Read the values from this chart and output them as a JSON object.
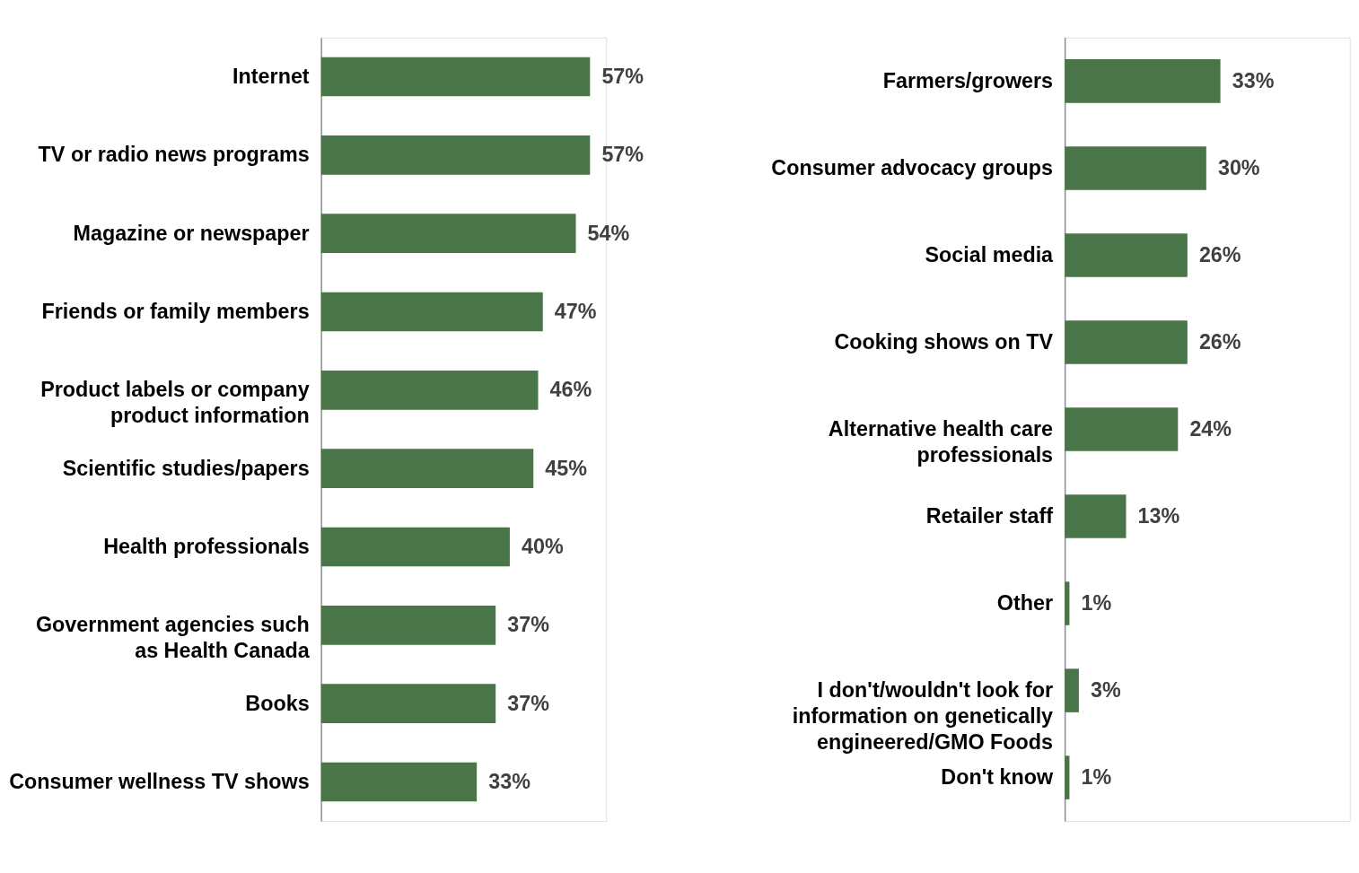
{
  "chart_data": [
    {
      "type": "bar",
      "orientation": "horizontal",
      "color": "#4a7548",
      "categories": [
        "Internet",
        "TV or radio news programs",
        "Magazine or newspaper",
        "Friends or family members",
        "Product labels or company product information",
        "Scientific studies/papers",
        "Health professionals",
        "Government agencies such as Health Canada",
        "Books",
        "Consumer wellness TV shows"
      ],
      "values": [
        57,
        57,
        54,
        47,
        46,
        45,
        40,
        37,
        37,
        33
      ],
      "value_labels": [
        "57%",
        "57%",
        "54%",
        "47%",
        "46%",
        "45%",
        "40%",
        "37%",
        "37%",
        "33%"
      ]
    },
    {
      "type": "bar",
      "orientation": "horizontal",
      "color": "#4a7548",
      "categories": [
        "Farmers/growers",
        "Consumer advocacy groups",
        "Social media",
        "Cooking shows on TV",
        "Alternative health care professionals",
        "Retailer staff",
        "Other",
        "I don't/wouldn't look for information on genetically engineered/GMO Foods",
        "Don't know"
      ],
      "values": [
        33,
        30,
        26,
        26,
        24,
        13,
        1,
        3,
        1
      ],
      "value_labels": [
        "33%",
        "30%",
        "26%",
        "26%",
        "24%",
        "13%",
        "1%",
        "3%",
        "1%"
      ]
    }
  ]
}
